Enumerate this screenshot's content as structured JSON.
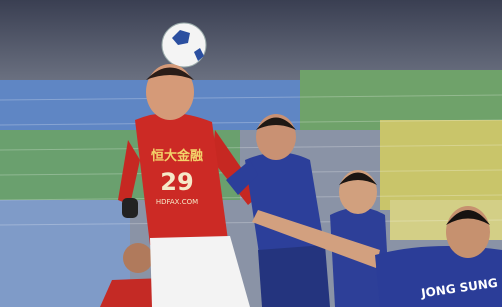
{
  "jersey_sponsor": "恒大金融",
  "jersey_number": "29",
  "jersey_url": "HDFAX.COM",
  "back_name": "JONG SUNG"
}
